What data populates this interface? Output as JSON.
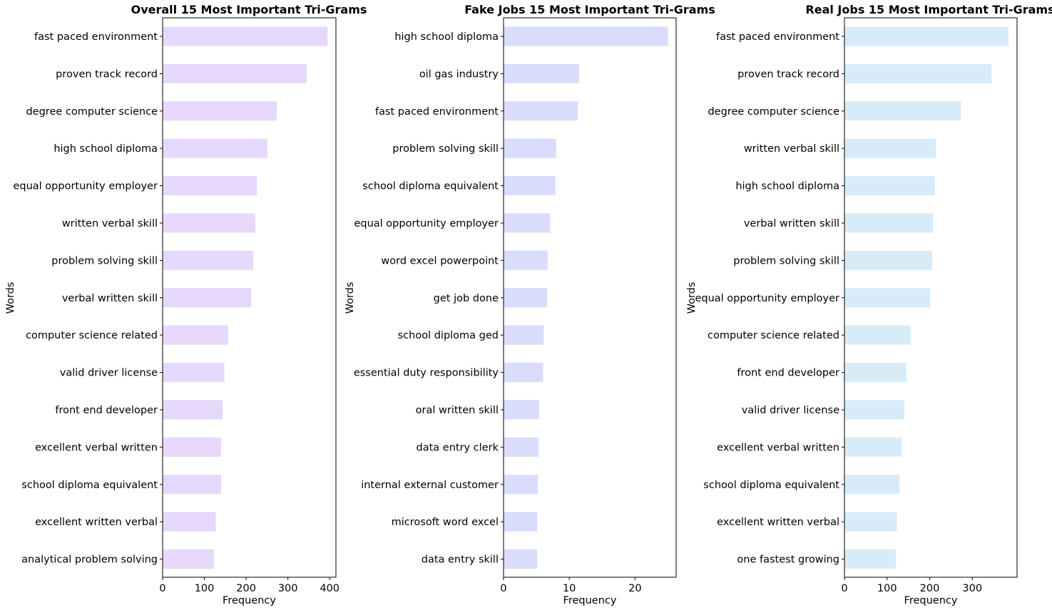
{
  "chart_data": [
    {
      "type": "bar",
      "orientation": "horizontal",
      "title": "Overall 15 Most Important Tri-Grams",
      "xlabel": "Frequency",
      "ylabel": "Words",
      "xlim": [
        0,
        415
      ],
      "xticks": [
        "0",
        "100",
        "200",
        "300",
        "400"
      ],
      "xtick_values": [
        0,
        100,
        200,
        300,
        400
      ],
      "bar_color": "#e6d8fb",
      "grid": false,
      "categories": [
        "fast paced environment",
        "proven track record",
        "degree computer science",
        "high school diploma",
        "equal opportunity employer",
        "written verbal skill",
        "problem solving skill",
        "verbal written skill",
        "computer science related",
        "valid driver license",
        "front end developer",
        "excellent verbal written",
        "school diploma equivalent",
        "excellent written verbal",
        "analytical problem solving"
      ],
      "values": [
        395,
        345,
        273,
        251,
        226,
        222,
        217,
        212,
        157,
        148,
        144,
        140,
        140,
        127,
        123
      ]
    },
    {
      "type": "bar",
      "orientation": "horizontal",
      "title": "Fake Jobs 15 Most Important Tri-Grams",
      "xlabel": "Frequency",
      "ylabel": "Words",
      "xlim": [
        0,
        26.25
      ],
      "xticks": [
        "0",
        "10",
        "20"
      ],
      "xtick_values": [
        0,
        10,
        20
      ],
      "bar_color": "#d9dcfb",
      "grid": false,
      "categories": [
        "high school diploma",
        "oil gas industry",
        "fast paced environment",
        "problem solving skill",
        "school diploma equivalent",
        "equal opportunity employer",
        "word excel powerpoint",
        "get job done",
        "school diploma ged",
        "essential duty responsibility",
        "oral written skill",
        "data entry clerk",
        "internal external customer",
        "microsoft word excel",
        "data entry skill"
      ],
      "values": [
        25,
        11.5,
        11.3,
        8,
        7.9,
        7.1,
        6.7,
        6.6,
        6.1,
        6,
        5.4,
        5.3,
        5.2,
        5.1,
        5.1
      ]
    },
    {
      "type": "bar",
      "orientation": "horizontal",
      "title": "Real Jobs 15 Most Important Tri-Grams",
      "xlabel": "Frequency",
      "ylabel": "Words",
      "xlim": [
        0,
        405
      ],
      "xticks": [
        "0",
        "100",
        "200",
        "300"
      ],
      "xtick_values": [
        0,
        100,
        200,
        300
      ],
      "bar_color": "#d8ebf9",
      "grid": false,
      "categories": [
        "fast paced environment",
        "proven track record",
        "degree computer science",
        "written verbal skill",
        "high school diploma",
        "verbal written skill",
        "problem solving skill",
        "equal opportunity employer",
        "computer science related",
        "front end developer",
        "valid driver license",
        "excellent verbal written",
        "school diploma equivalent",
        "excellent written verbal",
        "one fastest growing"
      ],
      "values": [
        385,
        345,
        273,
        215,
        212,
        208,
        206,
        201,
        155,
        145,
        141,
        134,
        129,
        123,
        121
      ]
    }
  ]
}
